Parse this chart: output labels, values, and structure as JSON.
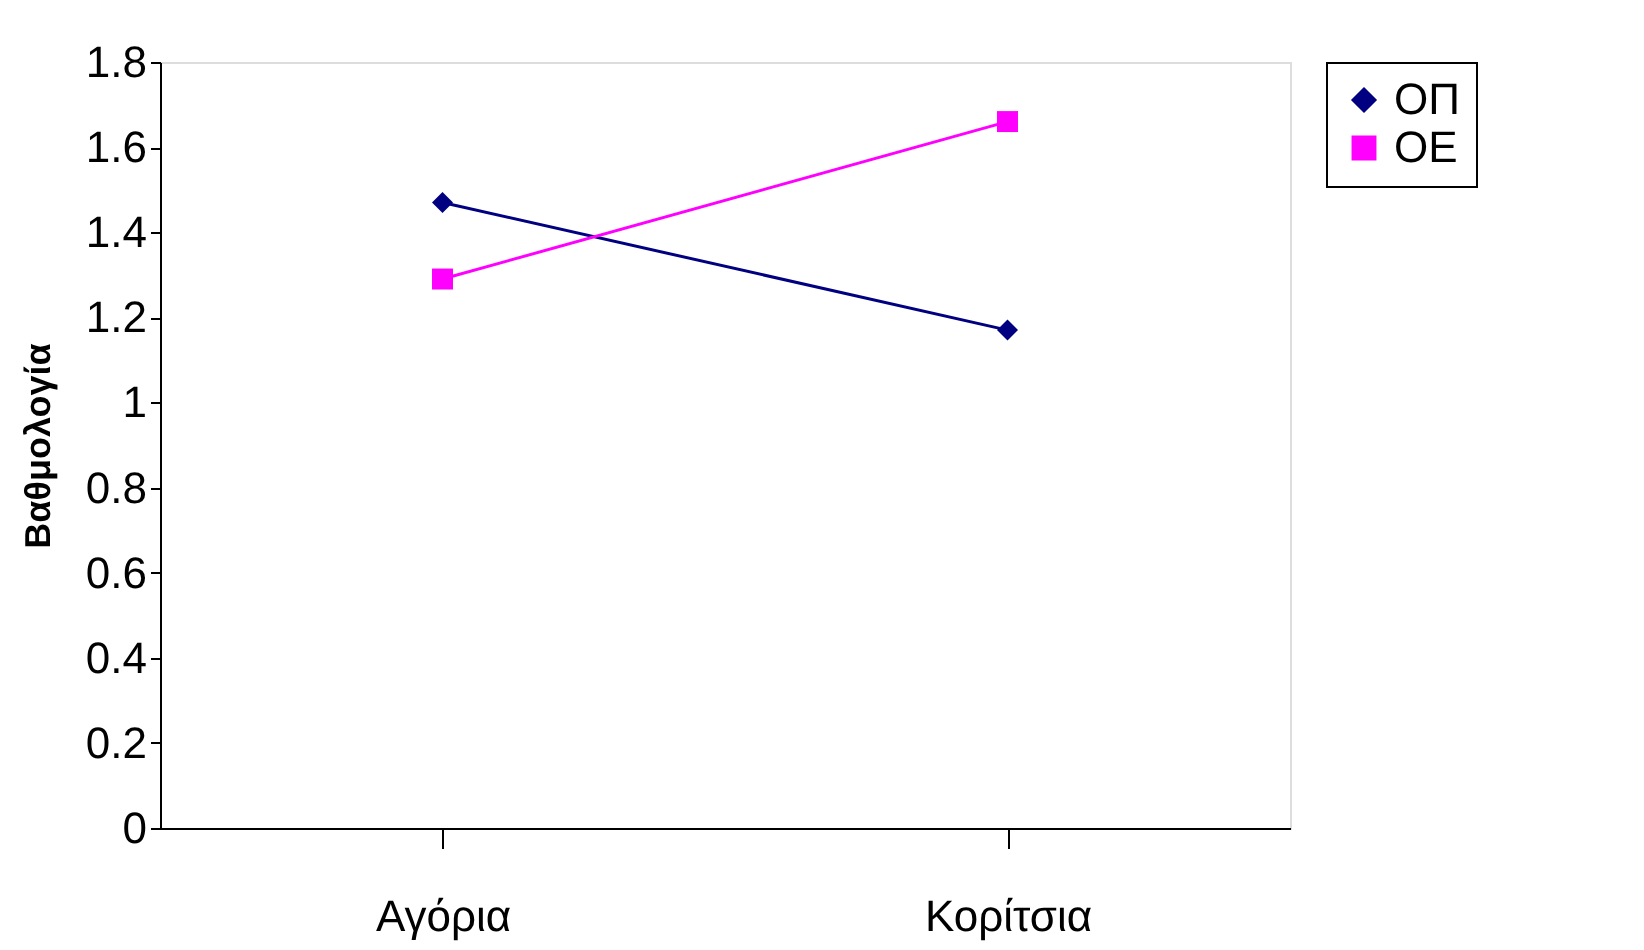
{
  "chart_data": {
    "type": "line",
    "ylabel": "Βαθμολογία",
    "categories": [
      "Αγόρια",
      "Κορίτσια"
    ],
    "series": [
      {
        "name": "ΟΠ",
        "color": "#000080",
        "marker": "diamond",
        "values": [
          1.47,
          1.17
        ]
      },
      {
        "name": "ΟΕ",
        "color": "#ff00ff",
        "marker": "square",
        "values": [
          1.29,
          1.66
        ]
      }
    ],
    "ylim": [
      0,
      1.8
    ],
    "yticks": [
      0,
      0.2,
      0.4,
      0.6,
      0.8,
      1,
      1.2,
      1.4,
      1.6,
      1.8
    ],
    "grid": false,
    "legend": "right",
    "line_style": "solid"
  }
}
